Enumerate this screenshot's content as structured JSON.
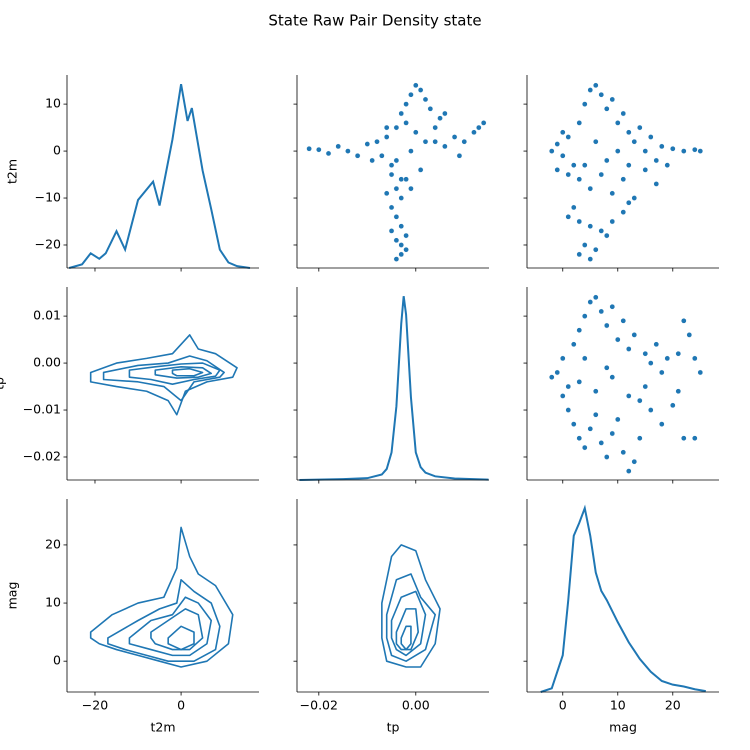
{
  "title": "State Raw Pair Density state",
  "chart_data": [
    {
      "type": "kde",
      "color": "#1f77b4",
      "ylabel": "t2m",
      "xlim": [
        -26.5,
        18.1
      ],
      "ylim": [
        -24.9,
        16.2
      ],
      "density_lim": [
        0,
        1.05
      ],
      "yticks": [
        {
          "value": -20,
          "label": "−20"
        },
        {
          "value": -10,
          "label": "−10"
        },
        0,
        10
      ],
      "x": [
        -26,
        -23,
        -21,
        -19,
        -17.5,
        -15,
        -13,
        -10,
        -6.5,
        -5,
        -2,
        0,
        1.5,
        2.5,
        5,
        7,
        9,
        11,
        13,
        16
      ],
      "y": [
        0,
        0.02,
        0.08,
        0.05,
        0.08,
        0.2,
        0.1,
        0.37,
        0.47,
        0.34,
        0.7,
        1.0,
        0.8,
        0.87,
        0.53,
        0.32,
        0.1,
        0.03,
        0.01,
        0
      ]
    },
    {
      "type": "scatter",
      "color": "#1f77b4",
      "xlim": [
        -0.0245,
        0.0151
      ],
      "ylim": [
        -24.9,
        16.2
      ],
      "x": [
        -0.022,
        -0.02,
        -0.018,
        -0.016,
        -0.014,
        -0.012,
        -0.01,
        -0.009,
        -0.008,
        -0.007,
        -0.006,
        -0.005,
        0.004,
        0.006,
        0.008,
        0.01,
        0.012,
        0.014,
        0.013,
        0.009,
        -0.004,
        -0.003,
        -0.002,
        -0.001,
        0,
        0.001,
        0.002,
        0.003,
        0.005,
        -0.002,
        0,
        0.002,
        -0.001,
        -0.004,
        -0.006,
        0.004,
        0.006,
        0.001,
        -0.002,
        -0.005,
        -0.004,
        -0.003,
        -0.005,
        -0.004,
        -0.003,
        -0.005,
        -0.002,
        -0.004,
        -0.003,
        -0.002,
        -0.003,
        -0.004,
        -0.006,
        -0.001,
        -0.003
      ],
      "y": [
        0.5,
        0.3,
        -0.5,
        1,
        0,
        -1,
        1.5,
        -2,
        2,
        -1,
        3,
        -3,
        2,
        1,
        3,
        2,
        4,
        6,
        5,
        -1,
        5,
        8,
        10,
        12,
        14,
        13,
        11,
        9,
        7,
        6,
        4,
        2,
        0,
        -2,
        5,
        5,
        8,
        -4,
        -6,
        -5,
        -8,
        -10,
        -12,
        -14,
        -16,
        -17,
        -18,
        -19,
        -20,
        -21,
        -22,
        -23,
        -9,
        -8,
        -6
      ]
    },
    {
      "type": "scatter",
      "color": "#1f77b4",
      "xlim": [
        -6.5,
        28.4
      ],
      "ylim": [
        -24.9,
        16.2
      ],
      "x": [
        -2,
        -1,
        0,
        1,
        2,
        3,
        4,
        5,
        6,
        7,
        8,
        9,
        10,
        11,
        12,
        13,
        14,
        15,
        16,
        17,
        18,
        20,
        22,
        24,
        25,
        3,
        5,
        7,
        9,
        11,
        13,
        15,
        17,
        19,
        1,
        4,
        6,
        8,
        10,
        12,
        -1,
        0,
        2,
        1,
        3,
        5,
        7,
        9,
        11,
        12,
        4,
        3,
        5,
        6,
        8
      ],
      "y": [
        0,
        1.5,
        -1,
        3,
        -3,
        6,
        10,
        13,
        14,
        12,
        9,
        11,
        6,
        8,
        4,
        2,
        5,
        0,
        3,
        -2,
        1,
        0.5,
        0,
        0.3,
        0,
        -6,
        -8,
        -5,
        -9,
        -6,
        -10,
        -4,
        -7,
        -3,
        -5,
        -3,
        2,
        -2,
        0,
        -3,
        -4,
        4,
        -12,
        -14,
        -15,
        -16,
        -17,
        -15,
        -13,
        -11,
        -20,
        -22,
        -23,
        -21,
        -18
      ]
    },
    {
      "type": "contour",
      "color": "#1f77b4",
      "ylabel": "tp",
      "xlim": [
        -26.5,
        18.1
      ],
      "ylim": [
        -0.0249,
        0.0162
      ],
      "yticks": [
        {
          "value": -0.02,
          "label": "−0.02"
        },
        {
          "value": -0.01,
          "label": "−0.01"
        },
        {
          "value": 0,
          "label": "0.00"
        },
        0.01
      ],
      "series": [
        {
          "x": [
            -21,
            -15,
            -8,
            -2,
            2,
            4,
            8,
            13,
            12,
            6,
            1,
            -1,
            -3,
            -8,
            -15,
            -21
          ],
          "y": [
            -0.002,
            0.0,
            0.001,
            0.002,
            0.006,
            0.003,
            0.002,
            -0.001,
            -0.003,
            -0.004,
            -0.006,
            -0.011,
            -0.008,
            -0.006,
            -0.005,
            -0.004
          ]
        },
        {
          "x": [
            -18,
            -10,
            -3,
            2,
            6,
            10,
            9,
            3,
            0,
            -4,
            -10,
            -18
          ],
          "y": [
            -0.002,
            -0.0005,
            0.0,
            0.0015,
            0.0005,
            -0.002,
            -0.003,
            -0.004,
            -0.008,
            -0.005,
            -0.004,
            -0.0035
          ]
        },
        {
          "x": [
            -12,
            -6,
            0,
            5,
            9,
            8,
            3,
            -2,
            -7,
            -12
          ],
          "y": [
            -0.0015,
            -0.0008,
            -0.0002,
            0.0,
            -0.0015,
            -0.0028,
            -0.0035,
            -0.0045,
            -0.0035,
            -0.003
          ]
        },
        {
          "x": [
            -6,
            0,
            5,
            7,
            4,
            -1,
            -6
          ],
          "y": [
            -0.0015,
            -0.0008,
            -0.001,
            -0.0022,
            -0.003,
            -0.0032,
            -0.0025
          ]
        },
        {
          "x": [
            -2,
            2,
            5,
            3,
            -1,
            -2
          ],
          "y": [
            -0.0015,
            -0.0012,
            -0.002,
            -0.0027,
            -0.0027,
            -0.0022
          ]
        }
      ]
    },
    {
      "type": "kde",
      "color": "#1f77b4",
      "xlim": [
        -0.0245,
        0.0151
      ],
      "density_lim": [
        0,
        1.05
      ],
      "x": [
        -0.024,
        -0.015,
        -0.01,
        -0.007,
        -0.006,
        -0.005,
        -0.004,
        -0.003,
        -0.0025,
        -0.002,
        -0.001,
        0,
        0.001,
        0.002,
        0.004,
        0.008,
        0.015
      ],
      "y": [
        0,
        0.005,
        0.01,
        0.03,
        0.06,
        0.15,
        0.4,
        0.85,
        1.0,
        0.9,
        0.45,
        0.15,
        0.07,
        0.04,
        0.02,
        0.008,
        0.002
      ]
    },
    {
      "type": "scatter",
      "color": "#1f77b4",
      "xlim": [
        -6.5,
        28.4
      ],
      "ylim": [
        -0.0249,
        0.0162
      ],
      "x": [
        -2,
        -1,
        0,
        1,
        2,
        3,
        4,
        5,
        6,
        7,
        8,
        9,
        10,
        11,
        12,
        13,
        15,
        17,
        19,
        21,
        22,
        23,
        24,
        25,
        1,
        2,
        3,
        4,
        5,
        6,
        7,
        8,
        9,
        10,
        11,
        12,
        13,
        14,
        16,
        18,
        20,
        22,
        24,
        3,
        6,
        9,
        12,
        15,
        18,
        21,
        4,
        8,
        14,
        0,
        16
      ],
      "y": [
        -0.003,
        -0.002,
        0.001,
        -0.005,
        0.004,
        0.007,
        0.01,
        0.013,
        0.014,
        0.011,
        0.008,
        0.012,
        0.005,
        0.009,
        0.003,
        0.006,
        0.002,
        0.004,
        0.001,
        0.002,
        0.009,
        0.006,
        0.001,
        -0.002,
        -0.01,
        -0.013,
        -0.016,
        -0.018,
        -0.014,
        -0.011,
        -0.017,
        -0.02,
        -0.015,
        -0.012,
        -0.019,
        -0.023,
        -0.021,
        -0.016,
        -0.01,
        -0.013,
        -0.009,
        -0.016,
        -0.016,
        -0.004,
        -0.006,
        -0.003,
        -0.007,
        -0.005,
        -0.002,
        -0.006,
        0.001,
        -0.001,
        -0.008,
        -0.007,
        0.0
      ]
    },
    {
      "type": "contour",
      "color": "#1f77b4",
      "xlabel": "t2m",
      "ylabel": "mag",
      "xlim": [
        -26.5,
        18.1
      ],
      "ylim": [
        -5.3,
        27.9
      ],
      "xticks": [
        {
          "value": -20,
          "label": "−20"
        },
        0
      ],
      "yticks": [
        0,
        10,
        20
      ],
      "series": [
        {
          "x": [
            -21,
            -16,
            -10,
            -4,
            -1,
            0,
            2,
            4,
            8,
            12,
            11,
            6,
            0,
            -5,
            -10,
            -15,
            -19,
            -21
          ],
          "y": [
            5,
            8,
            10,
            11,
            16,
            23,
            18,
            15,
            13,
            8,
            3,
            0,
            -1,
            0,
            1,
            2,
            3,
            4
          ]
        },
        {
          "x": [
            -17,
            -10,
            -5,
            -1,
            0,
            3,
            7,
            9,
            8,
            3,
            -3,
            -8,
            -13,
            -17
          ],
          "y": [
            4,
            7,
            9,
            10,
            14,
            12,
            10,
            6,
            2,
            0,
            0,
            1,
            2,
            3
          ]
        },
        {
          "x": [
            -12,
            -7,
            -2,
            1,
            4,
            7,
            6,
            2,
            -2,
            -7,
            -12
          ],
          "y": [
            4,
            7,
            8,
            11,
            10,
            7,
            3,
            1,
            1,
            2,
            3
          ]
        },
        {
          "x": [
            -7,
            -3,
            1,
            4,
            5,
            2,
            -2,
            -6,
            -7
          ],
          "y": [
            5,
            7,
            9,
            8,
            4,
            2,
            2,
            3,
            4
          ]
        },
        {
          "x": [
            -3,
            0,
            3,
            3,
            0,
            -3
          ],
          "y": [
            4,
            6,
            5,
            3,
            2,
            3
          ]
        }
      ]
    },
    {
      "type": "contour",
      "color": "#1f77b4",
      "xlabel": "tp",
      "xlim": [
        -0.0245,
        0.0151
      ],
      "ylim": [
        -5.3,
        27.9
      ],
      "xticks": [
        {
          "value": -0.02,
          "label": "−0.02"
        },
        {
          "value": 0,
          "label": "0.00"
        }
      ],
      "series": [
        {
          "x": [
            -0.007,
            -0.005,
            -0.003,
            0.0,
            0.002,
            0.005,
            0.004,
            0.001,
            -0.002,
            -0.006,
            -0.007
          ],
          "y": [
            10,
            18,
            20,
            19,
            14,
            9,
            3,
            -1,
            -1,
            0,
            4
          ]
        },
        {
          "x": [
            -0.006,
            -0.004,
            -0.001,
            0.001,
            0.004,
            0.002,
            -0.002,
            -0.005,
            -0.006
          ],
          "y": [
            8,
            14,
            15,
            11,
            8,
            2,
            0,
            1,
            4
          ]
        },
        {
          "x": [
            -0.005,
            -0.003,
            0.0,
            0.002,
            0.001,
            -0.002,
            -0.004,
            -0.005
          ],
          "y": [
            7,
            11,
            12,
            8,
            3,
            1,
            2,
            4
          ]
        },
        {
          "x": [
            -0.004,
            -0.002,
            0.0,
            0.0005,
            -0.001,
            -0.003,
            -0.004
          ],
          "y": [
            5,
            9,
            9,
            5,
            2,
            2,
            3
          ]
        },
        {
          "x": [
            -0.003,
            -0.002,
            -0.001,
            -0.001,
            -0.002,
            -0.003
          ],
          "y": [
            4,
            6,
            6,
            3,
            2,
            3
          ]
        }
      ]
    },
    {
      "type": "kde",
      "color": "#1f77b4",
      "xlabel": "mag",
      "xlim": [
        -6.5,
        28.4
      ],
      "density_lim": [
        0,
        1.05
      ],
      "xticks": [
        0,
        10,
        20
      ],
      "x": [
        -4,
        -2,
        0,
        1,
        2,
        3,
        4,
        5,
        6,
        7,
        8,
        10,
        12,
        14,
        16,
        18,
        20,
        22,
        24,
        26
      ],
      "y": [
        0,
        0.02,
        0.2,
        0.5,
        0.85,
        0.92,
        1.0,
        0.85,
        0.65,
        0.55,
        0.5,
        0.38,
        0.27,
        0.18,
        0.11,
        0.06,
        0.04,
        0.03,
        0.015,
        0.005
      ]
    }
  ]
}
